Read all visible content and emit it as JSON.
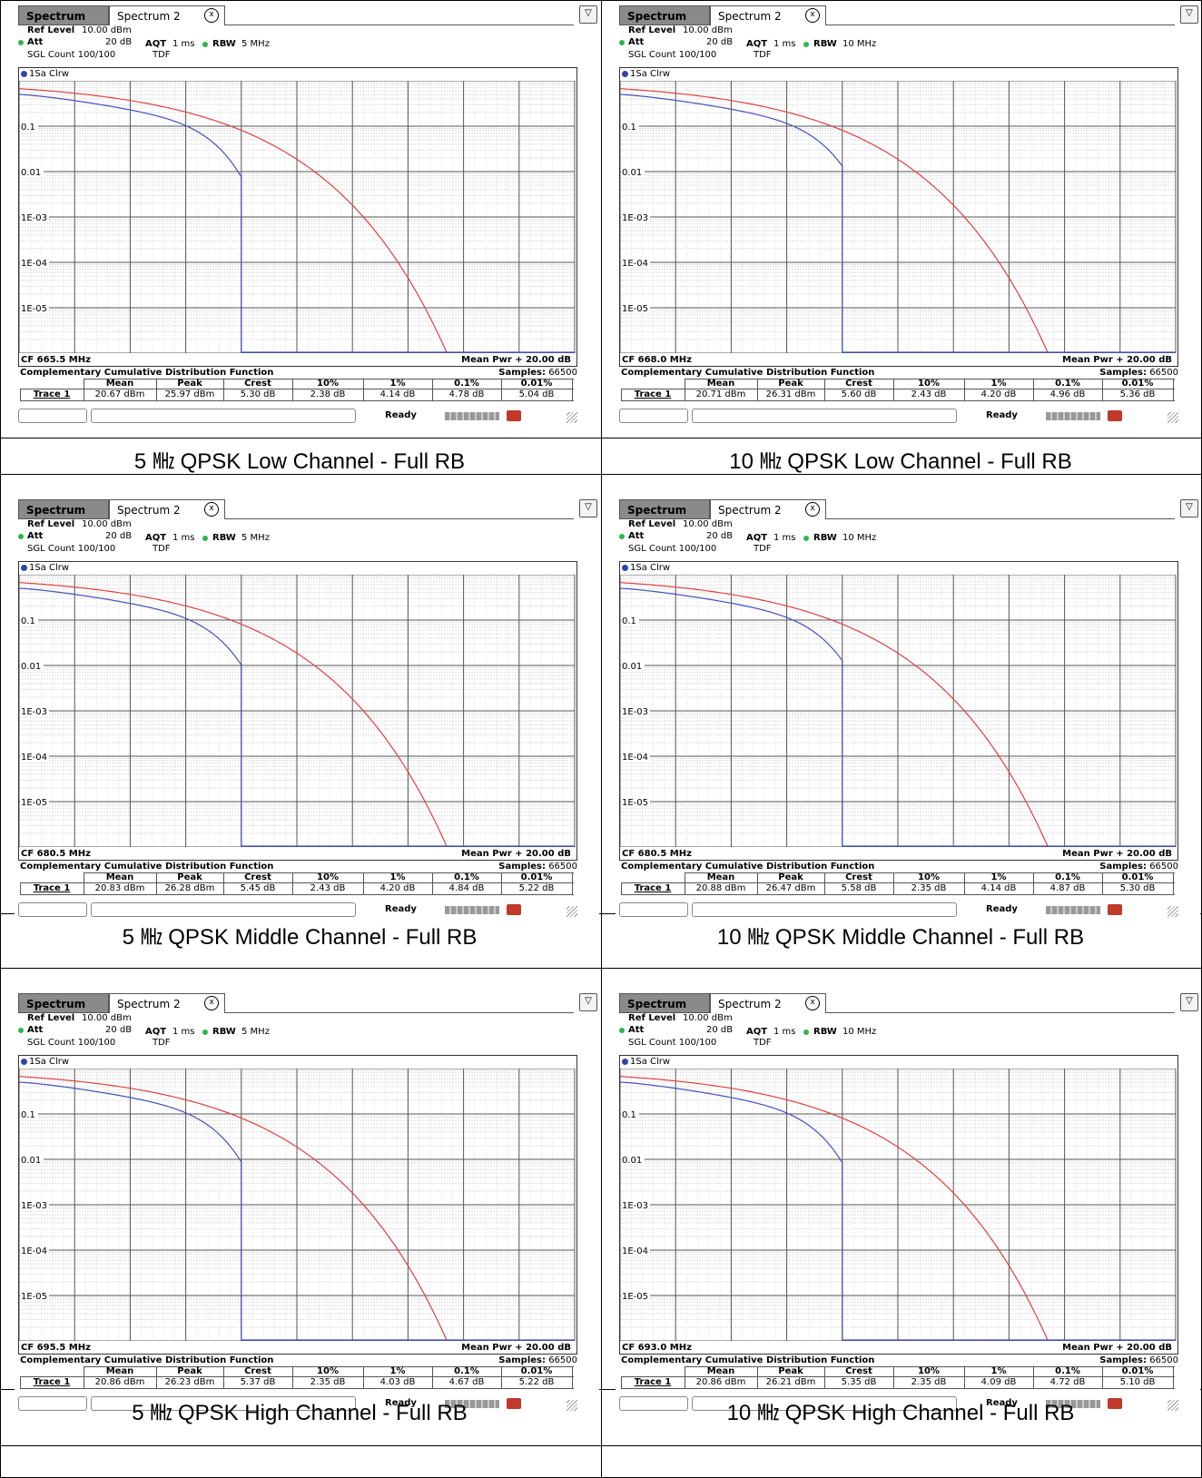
{
  "common": {
    "tab1": "Spectrum",
    "tab2": "Spectrum 2",
    "close_glyph": "x",
    "ref_level_label": "Ref Level",
    "ref_level_value": "10.00 dBm",
    "att_label": "Att",
    "att_value": "20 dB",
    "aqt_label": "AQT",
    "aqt_value": "1 ms",
    "rbw_label": "RBW",
    "sgl_count": "SGL Count 100/100",
    "tdf": "TDF",
    "trace_label": "1Sa Clrw",
    "y_ticks": [
      "0.1",
      "0.01",
      "1E-03",
      "1E-04",
      "1E-05"
    ],
    "mean_pwr": "Mean Pwr + 20.00 dB",
    "ccdf_title": "Complementary Cumulative Distribution Function",
    "samples_label": "Samples:",
    "samples_value": "66500",
    "headers": [
      "Mean",
      "Peak",
      "Crest",
      "10%",
      "1%",
      "0.1%",
      "0.01%"
    ],
    "trace_name": "Trace 1",
    "ready": "Ready",
    "colors": {
      "gaussian": "#e04040",
      "measured": "#4050c0",
      "grid": "#555555",
      "accent_green": "#2fb34a"
    },
    "icons": [
      "close-icon",
      "menu-icon",
      "status-icon",
      "resize-grip-icon"
    ]
  },
  "panels": [
    {
      "rbw": "5 MHz",
      "cf": "CF 665.5 MHz",
      "values": [
        "20.67 dBm",
        "25.97 dBm",
        "5.30 dB",
        "2.38 dB",
        "4.14 dB",
        "4.78 dB",
        "5.04 dB"
      ],
      "caption": "5 ㎒ QPSK Low Channel - Full RB"
    },
    {
      "rbw": "10 MHz",
      "cf": "CF 668.0 MHz",
      "values": [
        "20.71 dBm",
        "26.31 dBm",
        "5.60 dB",
        "2.43 dB",
        "4.20 dB",
        "4.96 dB",
        "5.36 dB"
      ],
      "caption": "10 ㎒ QPSK Low Channel - Full RB"
    },
    {
      "rbw": "5 MHz",
      "cf": "CF 680.5 MHz",
      "values": [
        "20.83 dBm",
        "26.28 dBm",
        "5.45 dB",
        "2.43 dB",
        "4.20 dB",
        "4.84 dB",
        "5.22 dB"
      ],
      "caption": "5 ㎒ QPSK Middle Channel - Full RB"
    },
    {
      "rbw": "10 MHz",
      "cf": "CF 680.5 MHz",
      "values": [
        "20.88 dBm",
        "26.47 dBm",
        "5.58 dB",
        "2.35 dB",
        "4.14 dB",
        "4.87 dB",
        "5.30 dB"
      ],
      "caption": "10 ㎒ QPSK Middle Channel - Full RB"
    },
    {
      "rbw": "5 MHz",
      "cf": "CF 695.5 MHz",
      "values": [
        "20.86 dBm",
        "26.23 dBm",
        "5.37 dB",
        "2.35 dB",
        "4.03 dB",
        "4.67 dB",
        "5.22 dB"
      ],
      "caption": "5 ㎒ QPSK High Channel - Full RB"
    },
    {
      "rbw": "10 MHz",
      "cf": "CF 693.0 MHz",
      "values": [
        "20.86 dBm",
        "26.21 dBm",
        "5.35 dB",
        "2.35 dB",
        "4.09 dB",
        "4.72 dB",
        "5.10 dB"
      ],
      "caption": "10 ㎒ QPSK High Channel - Full RB"
    }
  ]
}
